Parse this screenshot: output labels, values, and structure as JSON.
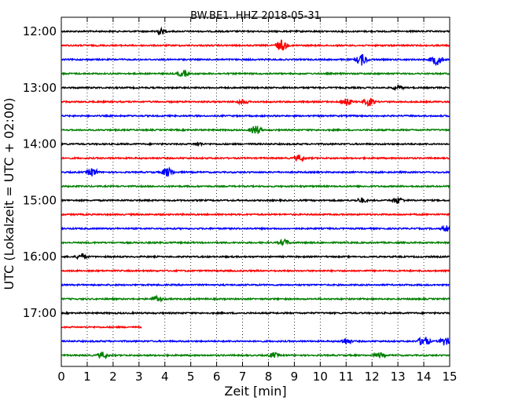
{
  "chart_data": {
    "type": "line",
    "title": "BW.BE1..HHZ 2018-05-31",
    "xlabel": "Zeit  [min]",
    "ylabel": "UTC (Lokalzeit = UTC + 02:00)",
    "xlim": [
      0,
      15
    ],
    "x_ticks": [
      "0",
      "1",
      "2",
      "3",
      "4",
      "5",
      "6",
      "7",
      "8",
      "9",
      "10",
      "11",
      "12",
      "13",
      "14",
      "15"
    ],
    "y_tick_labels": [
      "12:00",
      "13:00",
      "14:00",
      "15:00",
      "16:00",
      "17:00"
    ],
    "grid": "vertical dotted",
    "series_colors": [
      "#000000",
      "#ff0000",
      "#0000ff",
      "#008000"
    ],
    "traces": [
      {
        "start": "12:00",
        "color": "#000000",
        "x_start": 0,
        "x_end": 15,
        "bursts": [
          [
            3.8,
            5
          ]
        ]
      },
      {
        "start": "12:15",
        "color": "#ff0000",
        "x_start": 0,
        "x_end": 15,
        "bursts": [
          [
            8.5,
            8
          ]
        ]
      },
      {
        "start": "12:30",
        "color": "#0000ff",
        "x_start": 0,
        "x_end": 15,
        "bursts": [
          [
            11.6,
            8
          ],
          [
            14.5,
            8
          ]
        ]
      },
      {
        "start": "12:45",
        "color": "#008000",
        "x_start": 0,
        "x_end": 15,
        "bursts": [
          [
            4.7,
            5
          ]
        ]
      },
      {
        "start": "13:00",
        "color": "#000000",
        "x_start": 0,
        "x_end": 15,
        "bursts": [
          [
            13.0,
            4
          ]
        ]
      },
      {
        "start": "13:15",
        "color": "#ff0000",
        "x_start": 0,
        "x_end": 15,
        "bursts": [
          [
            7.0,
            4
          ],
          [
            11.0,
            6
          ],
          [
            11.9,
            6
          ]
        ]
      },
      {
        "start": "13:30",
        "color": "#0000ff",
        "x_start": 0,
        "x_end": 15,
        "bursts": []
      },
      {
        "start": "13:45",
        "color": "#008000",
        "x_start": 0,
        "x_end": 15,
        "bursts": [
          [
            7.5,
            7
          ]
        ]
      },
      {
        "start": "14:00",
        "color": "#000000",
        "x_start": 0,
        "x_end": 15,
        "bursts": [
          [
            5.3,
            3
          ]
        ]
      },
      {
        "start": "14:15",
        "color": "#ff0000",
        "x_start": 0,
        "x_end": 15,
        "bursts": [
          [
            9.2,
            5
          ]
        ]
      },
      {
        "start": "14:30",
        "color": "#0000ff",
        "x_start": 0,
        "x_end": 15,
        "bursts": [
          [
            1.2,
            6
          ],
          [
            4.1,
            7
          ]
        ]
      },
      {
        "start": "14:45",
        "color": "#008000",
        "x_start": 0,
        "x_end": 15,
        "bursts": []
      },
      {
        "start": "15:00",
        "color": "#000000",
        "x_start": 0,
        "x_end": 15,
        "bursts": [
          [
            11.6,
            4
          ],
          [
            13.0,
            5
          ]
        ]
      },
      {
        "start": "15:15",
        "color": "#ff0000",
        "x_start": 0,
        "x_end": 15,
        "bursts": []
      },
      {
        "start": "15:30",
        "color": "#0000ff",
        "x_start": 0,
        "x_end": 15,
        "bursts": [
          [
            14.9,
            5
          ]
        ]
      },
      {
        "start": "15:45",
        "color": "#008000",
        "x_start": 0,
        "x_end": 15,
        "bursts": [
          [
            8.6,
            5
          ]
        ]
      },
      {
        "start": "16:00",
        "color": "#000000",
        "x_start": 0,
        "x_end": 15,
        "bursts": [
          [
            0.8,
            5
          ]
        ]
      },
      {
        "start": "16:15",
        "color": "#ff0000",
        "x_start": 0,
        "x_end": 15,
        "bursts": []
      },
      {
        "start": "16:30",
        "color": "#0000ff",
        "x_start": 0,
        "x_end": 15,
        "bursts": []
      },
      {
        "start": "16:45",
        "color": "#008000",
        "x_start": 0,
        "x_end": 15,
        "bursts": [
          [
            3.7,
            5
          ]
        ]
      },
      {
        "start": "17:00",
        "color": "#000000",
        "x_start": 0,
        "x_end": 15,
        "bursts": []
      },
      {
        "start": "17:15",
        "color": "#ff0000",
        "x_start": 0,
        "x_end": 3.1,
        "bursts": []
      },
      {
        "start": "17:30",
        "color": "#0000ff",
        "x_start": 0,
        "x_end": 15,
        "bursts": [
          [
            11.0,
            5
          ],
          [
            14.0,
            8
          ],
          [
            14.8,
            6
          ]
        ]
      },
      {
        "start": "17:45",
        "color": "#008000",
        "x_start": 0,
        "x_end": 15,
        "bursts": [
          [
            1.6,
            5
          ],
          [
            8.2,
            4
          ],
          [
            12.3,
            4
          ]
        ]
      }
    ]
  }
}
